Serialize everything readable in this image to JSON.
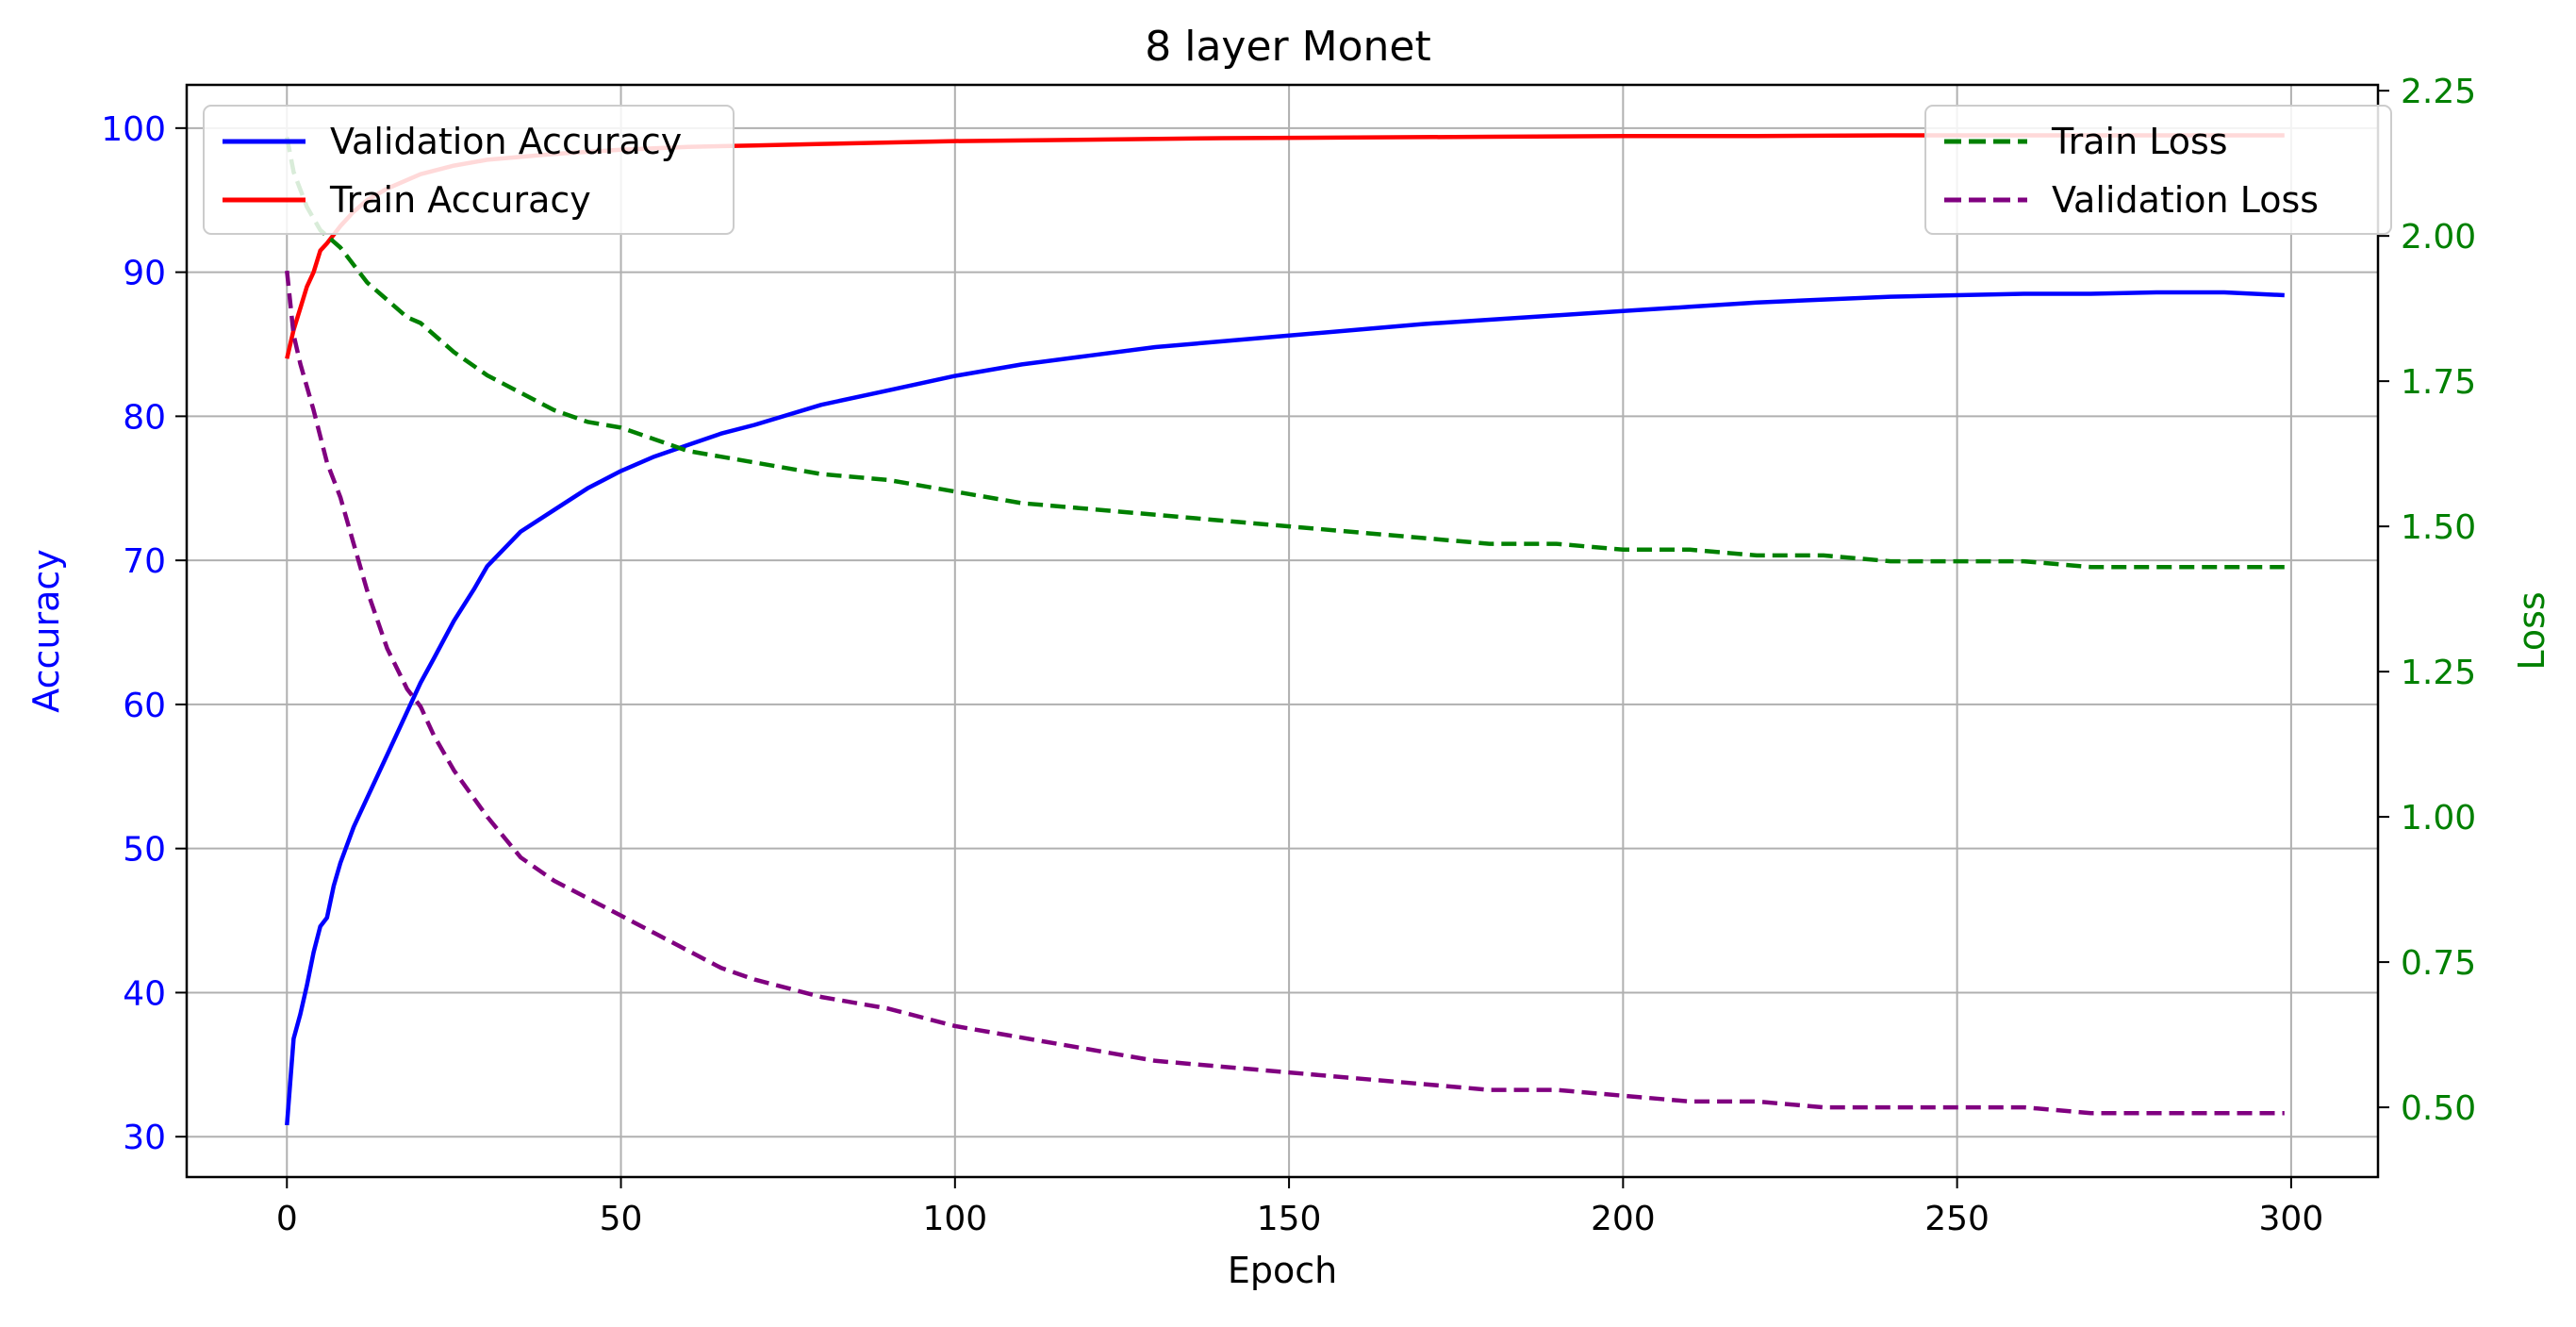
{
  "chart_data": {
    "type": "line",
    "title": "8 layer Monet",
    "xlabel": "Epoch",
    "ylabel_left": "Accuracy",
    "ylabel_right": "Loss",
    "xlim": [
      -15,
      313
    ],
    "ylim_left": [
      27.2,
      103.0
    ],
    "ylim_right": [
      0.38,
      2.26
    ],
    "x_ticks": [
      0,
      50,
      100,
      150,
      200,
      250,
      300
    ],
    "y_ticks_left": [
      30,
      40,
      50,
      60,
      70,
      80,
      90,
      100
    ],
    "y_ticks_right": [
      "0.50",
      "0.75",
      "1.00",
      "1.25",
      "1.50",
      "1.75",
      "2.00",
      "2.25"
    ],
    "grid": true,
    "colors": {
      "validation_accuracy": "#0000ff",
      "train_accuracy": "#ff0000",
      "train_loss": "#008000",
      "validation_loss": "#800080",
      "left_axis": "#0000ff",
      "right_axis": "#008000"
    },
    "legend_left": {
      "placement": "upper-left",
      "entries": [
        "Validation Accuracy",
        "Train Accuracy"
      ]
    },
    "legend_right": {
      "placement": "upper-right",
      "entries": [
        "Train Loss",
        "Validation Loss"
      ]
    },
    "series": [
      {
        "name": "Validation Accuracy",
        "axis": "left",
        "style": "solid",
        "x": [
          0,
          1,
          2,
          3,
          4,
          5,
          6,
          7,
          8,
          10,
          12,
          15,
          18,
          20,
          22,
          25,
          28,
          30,
          35,
          40,
          45,
          50,
          55,
          60,
          65,
          70,
          80,
          90,
          100,
          110,
          120,
          130,
          140,
          150,
          160,
          170,
          180,
          190,
          200,
          210,
          220,
          230,
          240,
          250,
          260,
          270,
          280,
          290,
          299
        ],
        "y": [
          30.8,
          36.8,
          38.5,
          40.5,
          42.8,
          44.6,
          45.2,
          47.4,
          49.0,
          51.5,
          53.5,
          56.5,
          59.5,
          61.5,
          63.2,
          65.8,
          68.0,
          69.6,
          72.0,
          73.5,
          75.0,
          76.2,
          77.2,
          78.0,
          78.8,
          79.4,
          80.8,
          81.8,
          82.8,
          83.6,
          84.2,
          84.8,
          85.2,
          85.6,
          86.0,
          86.4,
          86.7,
          87.0,
          87.3,
          87.6,
          87.9,
          88.1,
          88.3,
          88.4,
          88.5,
          88.5,
          88.6,
          88.6,
          88.4
        ]
      },
      {
        "name": "Train Accuracy",
        "axis": "left",
        "style": "solid",
        "x": [
          0,
          1,
          2,
          3,
          4,
          5,
          6,
          8,
          10,
          12,
          15,
          18,
          20,
          25,
          30,
          40,
          50,
          60,
          70,
          80,
          90,
          100,
          120,
          140,
          160,
          180,
          200,
          220,
          240,
          260,
          280,
          299
        ],
        "y": [
          84.0,
          86.0,
          87.5,
          89.0,
          90.0,
          91.5,
          92.0,
          93.2,
          94.2,
          95.0,
          95.8,
          96.4,
          96.8,
          97.4,
          97.8,
          98.2,
          98.5,
          98.7,
          98.8,
          98.9,
          99.0,
          99.1,
          99.2,
          99.3,
          99.35,
          99.4,
          99.45,
          99.45,
          99.5,
          99.5,
          99.5,
          99.5
        ]
      },
      {
        "name": "Train Loss",
        "axis": "right",
        "style": "dashed",
        "x": [
          0,
          1,
          2,
          3,
          4,
          5,
          6,
          8,
          10,
          12,
          15,
          18,
          20,
          25,
          30,
          35,
          40,
          45,
          50,
          55,
          60,
          70,
          80,
          90,
          100,
          110,
          120,
          130,
          140,
          150,
          160,
          170,
          180,
          190,
          200,
          210,
          220,
          230,
          240,
          250,
          260,
          270,
          280,
          290,
          299
        ],
        "y": [
          2.17,
          2.11,
          2.08,
          2.05,
          2.03,
          2.01,
          2.0,
          1.98,
          1.95,
          1.92,
          1.89,
          1.86,
          1.85,
          1.8,
          1.76,
          1.73,
          1.7,
          1.68,
          1.67,
          1.65,
          1.63,
          1.61,
          1.59,
          1.58,
          1.56,
          1.54,
          1.53,
          1.52,
          1.51,
          1.5,
          1.49,
          1.48,
          1.47,
          1.47,
          1.46,
          1.46,
          1.45,
          1.45,
          1.44,
          1.44,
          1.44,
          1.43,
          1.43,
          1.43,
          1.43
        ]
      },
      {
        "name": "Validation Loss",
        "axis": "right",
        "style": "dashed",
        "x": [
          0,
          1,
          2,
          4,
          6,
          8,
          10,
          12,
          15,
          18,
          20,
          22,
          25,
          30,
          35,
          40,
          45,
          50,
          55,
          60,
          65,
          70,
          80,
          90,
          100,
          110,
          120,
          130,
          140,
          150,
          160,
          170,
          180,
          190,
          200,
          210,
          220,
          230,
          240,
          250,
          260,
          270,
          280,
          290,
          299
        ],
        "y": [
          1.94,
          1.83,
          1.78,
          1.7,
          1.61,
          1.55,
          1.47,
          1.39,
          1.29,
          1.22,
          1.19,
          1.14,
          1.08,
          1.0,
          0.93,
          0.89,
          0.86,
          0.83,
          0.8,
          0.77,
          0.74,
          0.72,
          0.69,
          0.67,
          0.64,
          0.62,
          0.6,
          0.58,
          0.57,
          0.56,
          0.55,
          0.54,
          0.53,
          0.53,
          0.52,
          0.51,
          0.51,
          0.5,
          0.5,
          0.5,
          0.5,
          0.49,
          0.49,
          0.49,
          0.49
        ]
      }
    ]
  }
}
